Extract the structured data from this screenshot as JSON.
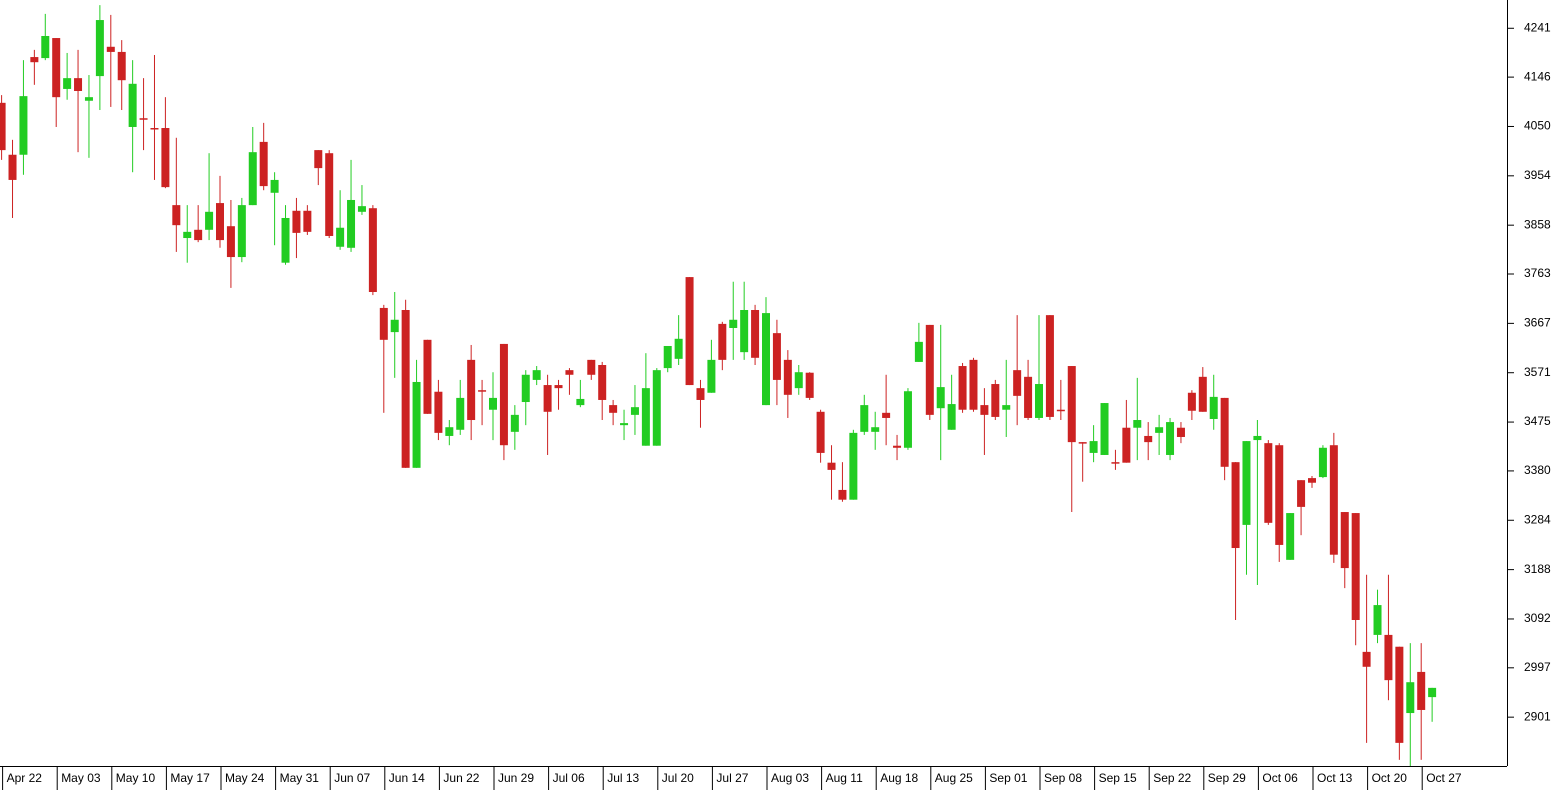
{
  "chart_data": {
    "type": "candlestick",
    "up_color": "#22cc22",
    "down_color": "#cc2222",
    "ylim": [
      2806,
      4296
    ],
    "yticks": [
      2901,
      2997,
      3092,
      3188,
      3284,
      3380,
      3475,
      3571,
      3667,
      3763,
      3858,
      3954,
      4050,
      4146,
      4241
    ],
    "categories": [
      "Apr 22",
      null,
      null,
      null,
      null,
      "May 03",
      null,
      null,
      null,
      null,
      "May 10",
      null,
      null,
      null,
      null,
      "May 17",
      null,
      null,
      null,
      null,
      "May 24",
      null,
      null,
      null,
      null,
      "May 31",
      null,
      null,
      null,
      null,
      "Jun 07",
      null,
      null,
      null,
      null,
      "Jun 14",
      null,
      null,
      null,
      null,
      "Jun 22",
      null,
      null,
      null,
      null,
      "Jun 29",
      null,
      null,
      null,
      null,
      "Jul 06",
      null,
      null,
      null,
      null,
      "Jul 13",
      null,
      null,
      null,
      null,
      "Jul 20",
      null,
      null,
      null,
      null,
      "Jul 27",
      null,
      null,
      null,
      null,
      "Aug 03",
      null,
      null,
      null,
      null,
      "Aug 11",
      null,
      null,
      null,
      null,
      "Aug 18",
      null,
      null,
      null,
      null,
      "Aug 25",
      null,
      null,
      null,
      null,
      "Sep 01",
      null,
      null,
      null,
      null,
      "Sep 08",
      null,
      null,
      null,
      null,
      "Sep 15",
      null,
      null,
      null,
      null,
      "Sep 22",
      null,
      null,
      null,
      null,
      "Sep 29",
      null,
      null,
      null,
      null,
      "Oct 06",
      null,
      null,
      null,
      null,
      "Oct 13",
      null,
      null,
      null,
      null,
      "Oct 20",
      null,
      null,
      null,
      null,
      "Oct 27",
      null
    ],
    "open": [
      4096,
      3995,
      3995,
      4185,
      4183,
      4222,
      4123,
      4144,
      4100,
      4148,
      4205,
      4195,
      4049,
      4066,
      4047,
      4047,
      3897,
      3833,
      3849,
      3849,
      3901,
      3856,
      3796,
      3897,
      4020,
      3921,
      3785,
      3886,
      3886,
      4004,
      3998,
      3816,
      3814,
      3884,
      3891,
      3697,
      3650,
      3693,
      3386,
      3635,
      3534,
      3448,
      3460,
      3596,
      3537,
      3499,
      3627,
      3456,
      3514,
      3557,
      3547,
      3547,
      3576,
      3508,
      3596,
      3586,
      3508,
      3469,
      3489,
      3429,
      3429,
      3580,
      3598,
      3757,
      3541,
      3532,
      3666,
      3658,
      3611,
      3693,
      3508,
      3648,
      3596,
      3541,
      3571,
      3495,
      3396,
      3343,
      3324,
      3456,
      3456,
      3493,
      3429,
      3425,
      3592,
      3664,
      3502,
      3460,
      3584,
      3596,
      3508,
      3549,
      3499,
      3576,
      3563,
      3483,
      3683,
      3499,
      3584,
      3436,
      3415,
      3411,
      3397,
      3464,
      3464,
      3448,
      3454,
      3411,
      3464,
      3532,
      3563,
      3481,
      3522,
      3397,
      3275,
      3440,
      3434,
      3430,
      3207,
      3362,
      3366,
      3368,
      3430,
      3300,
      3298,
      3028,
      3061,
      3061,
      3038,
      2909,
      2989,
      2940
    ],
    "high": [
      4111,
      4024,
      4179,
      4199,
      4269,
      4222,
      4193,
      4199,
      4150,
      4286,
      4267,
      4218,
      4179,
      4144,
      4189,
      4107,
      4028,
      3897,
      3897,
      3998,
      3954,
      3907,
      3911,
      4049,
      4057,
      3961,
      3897,
      3911,
      3897,
      4004,
      4004,
      3926,
      3985,
      3936,
      3897,
      3703,
      3728,
      3713,
      3596,
      3635,
      3557,
      3479,
      3557,
      3625,
      3557,
      3572,
      3627,
      3508,
      3576,
      3584,
      3567,
      3557,
      3580,
      3557,
      3596,
      3592,
      3518,
      3499,
      3547,
      3609,
      3580,
      3623,
      3683,
      3757,
      3557,
      3635,
      3670,
      3748,
      3748,
      3703,
      3718,
      3674,
      3615,
      3586,
      3572,
      3499,
      3430,
      3397,
      3460,
      3528,
      3495,
      3567,
      3450,
      3541,
      3668,
      3664,
      3664,
      3567,
      3590,
      3600,
      3541,
      3557,
      3596,
      3683,
      3596,
      3683,
      3683,
      3557,
      3584,
      3436,
      3469,
      3512,
      3421,
      3518,
      3561,
      3475,
      3489,
      3483,
      3475,
      3537,
      3582,
      3567,
      3522,
      3397,
      3438,
      3479,
      3440,
      3434,
      3298,
      3362,
      3370,
      3430,
      3454,
      3300,
      3298,
      3178,
      3149,
      3178,
      3038,
      3045,
      3045,
      2958
    ],
    "low": [
      3985,
      3872,
      3956,
      4131,
      4179,
      4049,
      4102,
      4000,
      3989,
      4082,
      4088,
      4082,
      3961,
      4004,
      3946,
      3930,
      3806,
      3785,
      3825,
      3829,
      3814,
      3736,
      3786,
      3897,
      3926,
      3819,
      3781,
      3794,
      3839,
      3936,
      3833,
      3810,
      3806,
      3878,
      3722,
      3493,
      3561,
      3386,
      3386,
      3491,
      3440,
      3430,
      3450,
      3440,
      3469,
      3440,
      3401,
      3421,
      3469,
      3547,
      3411,
      3499,
      3528,
      3504,
      3557,
      3479,
      3469,
      3440,
      3450,
      3429,
      3429,
      3572,
      3586,
      3547,
      3464,
      3532,
      3576,
      3596,
      3596,
      3586,
      3508,
      3508,
      3483,
      3528,
      3518,
      3396,
      3324,
      3320,
      3324,
      3450,
      3421,
      3430,
      3401,
      3421,
      3592,
      3479,
      3401,
      3460,
      3493,
      3495,
      3411,
      3479,
      3446,
      3469,
      3479,
      3479,
      3479,
      3479,
      3300,
      3359,
      3397,
      3411,
      3382,
      3396,
      3401,
      3401,
      3411,
      3401,
      3434,
      3479,
      3495,
      3460,
      3362,
      3090,
      3178,
      3158,
      3275,
      3203,
      3207,
      3255,
      3347,
      3366,
      3201,
      3152,
      3041,
      2851,
      3045,
      2934,
      2818,
      2806,
      2818,
      2892
    ],
    "close": [
      4004,
      3946,
      4109,
      4175,
      4226,
      4107,
      4144,
      4119,
      4107,
      4257,
      4195,
      4140,
      4133,
      4066,
      4047,
      3932,
      3858,
      3845,
      3829,
      3884,
      3829,
      3796,
      3897,
      4000,
      3934,
      3946,
      3872,
      3843,
      3845,
      3969,
      3837,
      3853,
      3907,
      3895,
      3728,
      3635,
      3674,
      3386,
      3553,
      3491,
      3454,
      3465,
      3522,
      3479,
      3537,
      3522,
      3430,
      3489,
      3567,
      3576,
      3495,
      3541,
      3567,
      3520,
      3567,
      3518,
      3493,
      3473,
      3504,
      3541,
      3576,
      3623,
      3637,
      3547,
      3518,
      3596,
      3596,
      3674,
      3693,
      3600,
      3687,
      3557,
      3528,
      3572,
      3522,
      3415,
      3382,
      3324,
      3454,
      3508,
      3465,
      3483,
      3425,
      3535,
      3631,
      3489,
      3543,
      3510,
      3499,
      3499,
      3489,
      3485,
      3508,
      3526,
      3483,
      3549,
      3485,
      3499,
      3436,
      3436,
      3438,
      3512,
      3397,
      3396,
      3479,
      3436,
      3465,
      3475,
      3446,
      3497,
      3495,
      3524,
      3388,
      3230,
      3438,
      3448,
      3279,
      3236,
      3298,
      3310,
      3357,
      3425,
      3217,
      3191,
      3090,
      2999,
      3119,
      2973,
      2851,
      2969,
      2915,
      2958
    ]
  }
}
